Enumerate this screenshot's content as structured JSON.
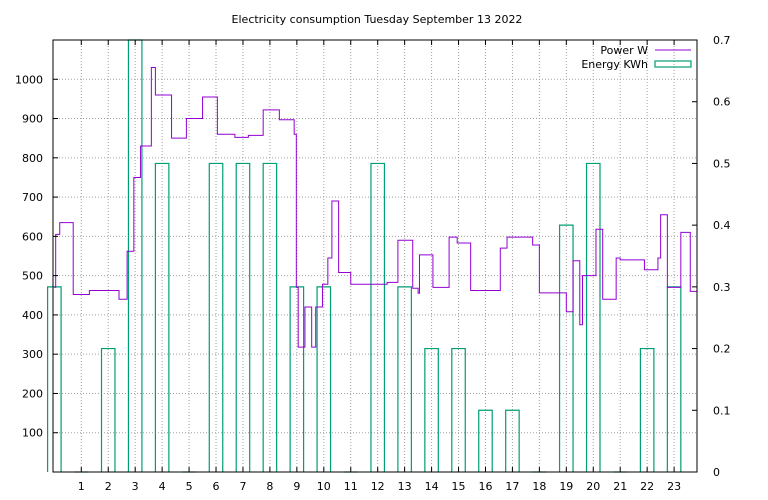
{
  "chart_data": {
    "type": "line",
    "title": "Electricity consumption Tuesday September 13 2022",
    "xlabel": "",
    "ylabel": "",
    "xlim": [
      -0.05,
      23.85
    ],
    "ylim": [
      0,
      1100
    ],
    "y2lim": [
      0,
      0.7
    ],
    "x_ticks": [
      1,
      2,
      3,
      4,
      5,
      6,
      7,
      8,
      9,
      10,
      11,
      12,
      13,
      14,
      15,
      16,
      17,
      18,
      19,
      20,
      21,
      22,
      23
    ],
    "y_ticks": [
      100,
      200,
      300,
      400,
      500,
      600,
      700,
      800,
      900,
      1000
    ],
    "y2_ticks": [
      0,
      0.1,
      0.2,
      0.3,
      0.4,
      0.5,
      0.6,
      0.7
    ],
    "y2_tick_labels": [
      "0",
      "0.1",
      "0.2",
      "0.3",
      "0.4",
      "0.5",
      "0.6",
      "0.7"
    ],
    "grid": true,
    "legend_position": "top-right",
    "colors": {
      "power": "#9400d3",
      "energy": "#009e73"
    },
    "series": [
      {
        "name": "Power W",
        "style": "steps",
        "axis": "left",
        "points": [
          [
            0.0,
            470
          ],
          [
            0.05,
            605
          ],
          [
            0.2,
            635
          ],
          [
            0.7,
            452
          ],
          [
            1.3,
            462
          ],
          [
            2.4,
            440
          ],
          [
            2.7,
            562
          ],
          [
            2.95,
            750
          ],
          [
            3.2,
            830
          ],
          [
            3.6,
            1030
          ],
          [
            3.75,
            960
          ],
          [
            4.35,
            850
          ],
          [
            4.9,
            900
          ],
          [
            5.5,
            955
          ],
          [
            6.05,
            860
          ],
          [
            6.7,
            852
          ],
          [
            7.2,
            857
          ],
          [
            7.75,
            922
          ],
          [
            8.35,
            897
          ],
          [
            8.9,
            860
          ],
          [
            8.98,
            470
          ],
          [
            9.05,
            318
          ],
          [
            9.3,
            420
          ],
          [
            9.55,
            318
          ],
          [
            9.7,
            420
          ],
          [
            9.95,
            478
          ],
          [
            10.15,
            545
          ],
          [
            10.3,
            690
          ],
          [
            10.55,
            508
          ],
          [
            11.0,
            478
          ],
          [
            12.35,
            483
          ],
          [
            12.75,
            590
          ],
          [
            13.3,
            468
          ],
          [
            13.5,
            455
          ],
          [
            13.55,
            553
          ],
          [
            14.05,
            470
          ],
          [
            14.65,
            598
          ],
          [
            14.95,
            583
          ],
          [
            15.45,
            462
          ],
          [
            16.55,
            570
          ],
          [
            16.8,
            598
          ],
          [
            17.75,
            578
          ],
          [
            18.0,
            456
          ],
          [
            19.0,
            408
          ],
          [
            19.25,
            538
          ],
          [
            19.5,
            375
          ],
          [
            19.6,
            500
          ],
          [
            20.1,
            618
          ],
          [
            20.35,
            440
          ],
          [
            20.85,
            545
          ],
          [
            21.0,
            540
          ],
          [
            21.9,
            515
          ],
          [
            22.4,
            545
          ],
          [
            22.5,
            655
          ],
          [
            22.75,
            470
          ],
          [
            23.25,
            610
          ],
          [
            23.6,
            460
          ],
          [
            23.85,
            460
          ]
        ]
      },
      {
        "name": "Energy KWh",
        "style": "boxes",
        "axis": "right",
        "box_width": 0.5,
        "points": [
          [
            0,
            0.3
          ],
          [
            1,
            0
          ],
          [
            2,
            0.2
          ],
          [
            3,
            0.7
          ],
          [
            4,
            0.5
          ],
          [
            5,
            0
          ],
          [
            6,
            0.5
          ],
          [
            7,
            0.5
          ],
          [
            8,
            0.5
          ],
          [
            9,
            0.3
          ],
          [
            10,
            0.3
          ],
          [
            11,
            0
          ],
          [
            12,
            0.5
          ],
          [
            13,
            0.3
          ],
          [
            14,
            0.2
          ],
          [
            15,
            0.2
          ],
          [
            16,
            0.1
          ],
          [
            17,
            0.1
          ],
          [
            18,
            0
          ],
          [
            19,
            0.4
          ],
          [
            20,
            0.5
          ],
          [
            21,
            0
          ],
          [
            22,
            0.2
          ],
          [
            23,
            0.3
          ]
        ]
      }
    ]
  }
}
